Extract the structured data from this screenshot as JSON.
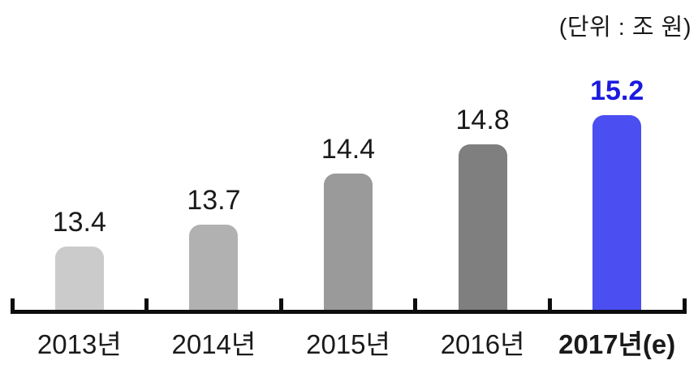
{
  "chart": {
    "unit_label": "(단위 : 조 원)",
    "background_color": "#ffffff",
    "axis_color": "#0d0d0d",
    "text_color": "#1a1a1a",
    "highlight_text_color": "#1a1ade",
    "highlight_bar_color": "#4b4ef0"
  },
  "chart_data": {
    "type": "bar",
    "title": "",
    "unit": "조 원",
    "categories": [
      "2013년",
      "2014년",
      "2015년",
      "2016년",
      "2017년(e)"
    ],
    "values": [
      13.4,
      13.7,
      14.4,
      14.8,
      15.2
    ],
    "value_labels": [
      "13.4",
      "13.7",
      "14.4",
      "14.8",
      "15.2"
    ],
    "bar_colors": [
      "#cbcbcb",
      "#b1b1b1",
      "#9a9a9a",
      "#7f7f7f",
      "#4b4ef0"
    ],
    "value_label_colors": [
      "#1a1a1a",
      "#1a1a1a",
      "#1a1a1a",
      "#1a1a1a",
      "#1a1ade"
    ],
    "emphasized_index": 4,
    "xlabel": "",
    "ylabel": "",
    "ylim": [
      12.5,
      15.5
    ],
    "grid": false,
    "legend": false,
    "axis_ticks": "upward ticks at category boundaries on x-axis only"
  }
}
